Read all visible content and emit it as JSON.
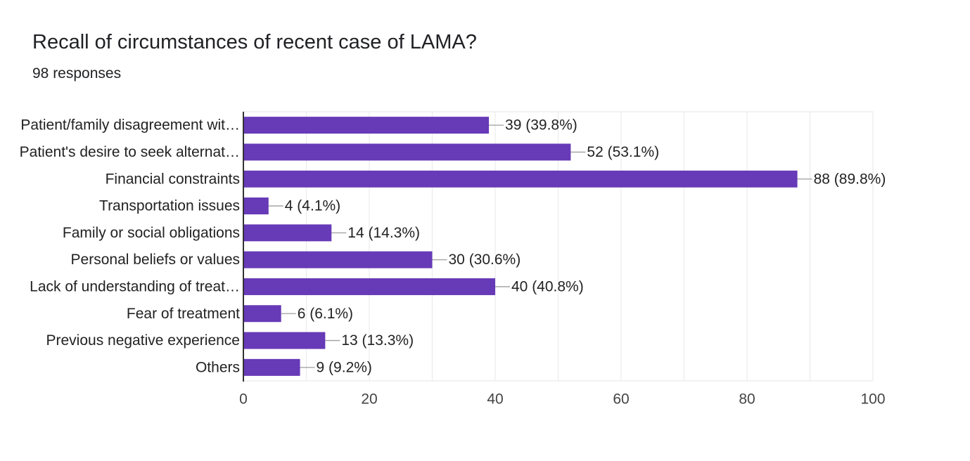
{
  "header": {
    "title": "Recall of circumstances of recent case of LAMA?",
    "responses": "98 responses"
  },
  "colors": {
    "bar": "#673ab7",
    "grid": "#ebebeb",
    "axis": "#333333",
    "leader": "#9e9e9e"
  },
  "chart_data": {
    "type": "bar",
    "orientation": "horizontal",
    "title": "Recall of circumstances of recent case of LAMA?",
    "subtitle": "98 responses",
    "categories": [
      "Patient/family disagreement wit…",
      "Patient's desire to seek alternat…",
      "Financial constraints",
      "Transportation issues",
      "Family or social obligations",
      "Personal beliefs or values",
      "Lack of understanding of treat…",
      "Fear of treatment",
      "Previous negative experience",
      "Others"
    ],
    "values": [
      39,
      52,
      88,
      4,
      14,
      30,
      40,
      6,
      13,
      9
    ],
    "data_labels": [
      "39 (39.8%)",
      "52 (53.1%)",
      "88 (89.8%)",
      "4 (4.1%)",
      "14 (14.3%)",
      "30 (30.6%)",
      "40 (40.8%)",
      "6 (6.1%)",
      "13 (13.3%)",
      "9 (9.2%)"
    ],
    "xlim": [
      0,
      100
    ],
    "xticks": [
      0,
      20,
      40,
      60,
      80,
      100
    ],
    "xtick_labels": [
      "0",
      "20",
      "40",
      "60",
      "80",
      "100"
    ],
    "minor_gridlines": true,
    "xlabel": "",
    "ylabel": ""
  }
}
